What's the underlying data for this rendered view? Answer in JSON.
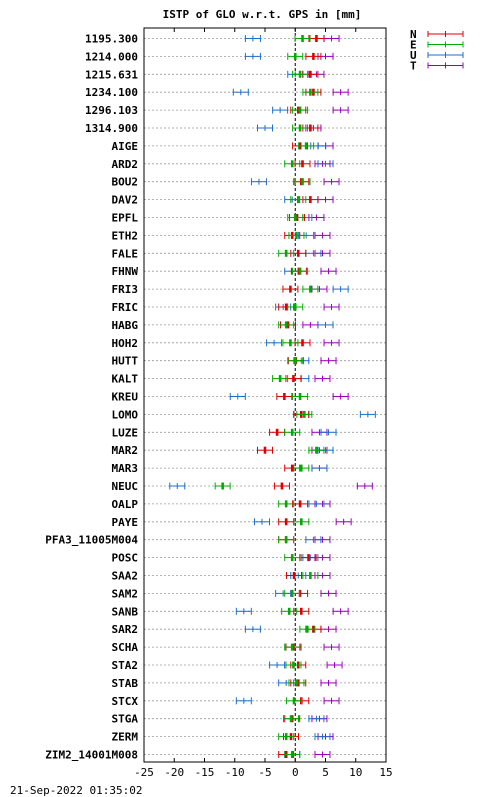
{
  "chart_data": {
    "type": "scatter",
    "title": "ISTP of GLO w.r.t. GPS in [mm]",
    "categories": [
      "1195.300",
      "1214.000",
      "1215.631",
      "1234.100",
      "1296.103",
      "1314.900",
      "AIGE",
      "ARD2",
      "BOU2",
      "DAV2",
      "EPFL",
      "ETH2",
      "FALE",
      "FHNW",
      "FRI3",
      "FRIC",
      "HABG",
      "HOH2",
      "HUTT",
      "KALT",
      "KREU",
      "LOMO",
      "LUZE",
      "MAR2",
      "MAR3",
      "NEUC",
      "OALP",
      "PAYE",
      "PFA3_11005M004",
      "POSC",
      "SAA2",
      "SAM2",
      "SANB",
      "SAR2",
      "SCHA",
      "STA2",
      "STAB",
      "STCX",
      "STGA",
      "ZERM",
      "ZIM2_14001M008"
    ],
    "xlim": [
      -25,
      15
    ],
    "xticks": [
      -25,
      -20,
      -15,
      -10,
      -5,
      0,
      5,
      10,
      15
    ],
    "grid": true,
    "legend_position": "top-right",
    "series": [
      {
        "name": "N",
        "color": "#dd0000",
        "values": [
          3.5,
          3.0,
          2.5,
          3.0,
          0.5,
          2.5,
          0.8,
          1.2,
          1.0,
          2.5,
          0.3,
          -0.5,
          0.5,
          0.6,
          -0.8,
          -1.5,
          -1.2,
          1.2,
          0.1,
          -0.3,
          -1.8,
          1.0,
          -3.0,
          -5.0,
          -0.5,
          -2.2,
          0.8,
          -1.5,
          -1.5,
          2.2,
          -0.2,
          0.8,
          1.0,
          3.0,
          -0.3,
          0.5,
          0.5,
          1.0,
          -0.5,
          -0.7,
          -1.5
        ]
      },
      {
        "name": "E",
        "color": "#00aa00",
        "values": [
          1.2,
          0.0,
          0.8,
          2.5,
          0.8,
          0.8,
          1.8,
          -0.5,
          1.2,
          0.5,
          0.0,
          0.2,
          -1.5,
          0.8,
          2.5,
          0.0,
          -1.5,
          -0.8,
          0.0,
          -2.5,
          0.8,
          1.5,
          -0.5,
          3.5,
          1.0,
          -12.0,
          -1.5,
          1.0,
          -1.5,
          -0.5,
          2.5,
          -0.5,
          -1.0,
          2.0,
          -0.5,
          -0.3,
          0.2,
          -0.2,
          -0.7,
          -1.5,
          -0.5
        ]
      },
      {
        "name": "U",
        "color": "#1e6fcc",
        "values": [
          -7.0,
          -7.0,
          0.0,
          -9.0,
          -2.5,
          -5.0,
          3.8,
          5.0,
          -6.0,
          -0.5,
          1.5,
          1.8,
          3.0,
          -0.5,
          7.5,
          -2.0,
          5.0,
          -3.5,
          1.0,
          1.0,
          -9.5,
          12.0,
          5.5,
          5.0,
          4.0,
          -19.5,
          3.5,
          -5.5,
          3.0,
          2.5,
          0.5,
          -2.0,
          -8.5,
          -7.0,
          -0.3,
          -3.0,
          -1.5,
          -8.5,
          3.5,
          4.5,
          -0.5
        ]
      },
      {
        "name": "T",
        "color": "#9900bb",
        "values": [
          6.0,
          5.0,
          3.5,
          7.5,
          7.5,
          3.0,
          5.0,
          4.5,
          6.0,
          5.0,
          3.5,
          4.5,
          4.5,
          5.5,
          4.0,
          6.0,
          2.5,
          6.0,
          5.5,
          4.5,
          7.5,
          1.0,
          4.0,
          4.0,
          4.0,
          11.5,
          4.5,
          8.0,
          4.5,
          4.5,
          4.5,
          5.5,
          7.5,
          5.5,
          6.0,
          6.5,
          5.5,
          6.0,
          4.0,
          5.0,
          4.5
        ]
      }
    ]
  },
  "footer": {
    "timestamp": "21-Sep-2022 01:35:02"
  }
}
